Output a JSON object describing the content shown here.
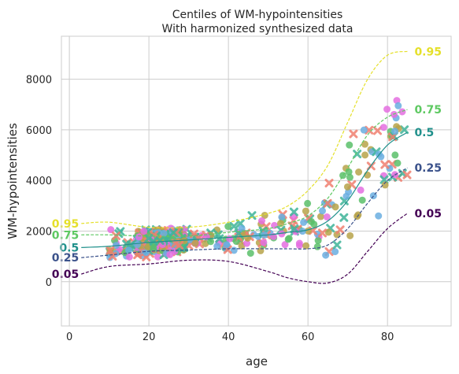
{
  "chart_data": {
    "type": "scatter",
    "title": "Centiles of WM-hypointensities",
    "subtitle": "With harmonized synthesized data",
    "xlabel": "age",
    "ylabel": "WM-hypointensities",
    "xlim": [
      -2,
      96
    ],
    "ylim": [
      -1750,
      9700
    ],
    "xticks": [
      0,
      20,
      40,
      60,
      80
    ],
    "yticks": [
      0,
      2000,
      4000,
      6000,
      8000
    ],
    "grid": true,
    "marker_colors": [
      "#f08070",
      "#5bbf6a",
      "#b7a34a",
      "#3fb59a",
      "#6aaee0",
      "#e46fe0"
    ],
    "centiles": [
      {
        "label": "0.95",
        "color": "#e5e02a",
        "dash": "dashed",
        "x": [
          3,
          10,
          20,
          30,
          40,
          50,
          55,
          60,
          65,
          70,
          75,
          80,
          85
        ],
        "y": [
          2300,
          2350,
          2150,
          2150,
          2350,
          2700,
          3000,
          3600,
          4600,
          6300,
          8000,
          8950,
          9100
        ]
      },
      {
        "label": "0.75",
        "color": "#5ec962",
        "dash": "dashed",
        "x": [
          3,
          10,
          20,
          30,
          40,
          50,
          55,
          60,
          65,
          70,
          75,
          80,
          85
        ],
        "y": [
          1850,
          1850,
          1800,
          1800,
          1950,
          2100,
          2300,
          2600,
          3300,
          4500,
          5800,
          6500,
          6800
        ]
      },
      {
        "label": "0.5",
        "color": "#21918c",
        "dash": "solid",
        "x": [
          3,
          10,
          20,
          30,
          40,
          50,
          55,
          60,
          65,
          70,
          75,
          80,
          85
        ],
        "y": [
          1350,
          1400,
          1550,
          1650,
          1750,
          1850,
          1950,
          2050,
          2400,
          3200,
          4400,
          5400,
          5900
        ]
      },
      {
        "label": "0.25",
        "color": "#3b528b",
        "dash": "dashed",
        "x": [
          3,
          10,
          20,
          30,
          40,
          50,
          55,
          60,
          65,
          70,
          75,
          80,
          85
        ],
        "y": [
          950,
          1050,
          1200,
          1250,
          1300,
          1300,
          1300,
          1300,
          1450,
          2100,
          3100,
          4000,
          4500
        ]
      },
      {
        "label": "0.05",
        "color": "#440154",
        "dash": "dashed",
        "x": [
          3,
          10,
          20,
          30,
          40,
          50,
          55,
          60,
          65,
          70,
          75,
          80,
          85
        ],
        "y": [
          300,
          600,
          700,
          850,
          800,
          400,
          150,
          0,
          -50,
          300,
          1200,
          2100,
          2700
        ]
      }
    ]
  }
}
